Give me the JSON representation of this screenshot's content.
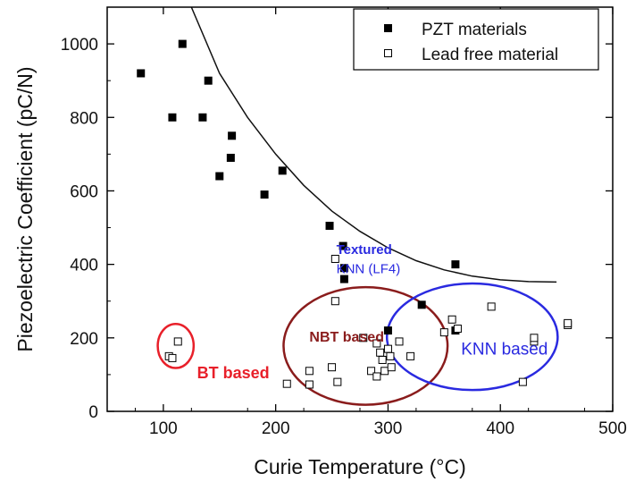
{
  "chart_data": {
    "type": "scatter",
    "xlabel": "Curie  Temperature (°C)",
    "ylabel": "Piezoelectric Coefficient (pC/N)",
    "xlim": [
      50,
      500
    ],
    "ylim": [
      0,
      1100
    ],
    "xticks": [
      100,
      200,
      300,
      400,
      500
    ],
    "yticks": [
      0,
      200,
      400,
      600,
      800,
      1000
    ],
    "legend": {
      "placement": "top-right",
      "entries": [
        "PZT materials",
        "Lead free material"
      ]
    },
    "series": [
      {
        "name": "PZT materials",
        "marker": "filled-square",
        "color": "#000000",
        "points": [
          [
            80,
            920
          ],
          [
            108,
            800
          ],
          [
            117,
            1000
          ],
          [
            135,
            800
          ],
          [
            140,
            900
          ],
          [
            150,
            640
          ],
          [
            160,
            690
          ],
          [
            161,
            750
          ],
          [
            190,
            590
          ],
          [
            206,
            655
          ],
          [
            248,
            505
          ],
          [
            260,
            450
          ],
          [
            261,
            390
          ],
          [
            261,
            360
          ],
          [
            300,
            220
          ],
          [
            330,
            290
          ],
          [
            360,
            220
          ],
          [
            360,
            400
          ]
        ]
      },
      {
        "name": "Lead free material",
        "marker": "open-square",
        "color": "#000000",
        "points": [
          [
            105,
            150
          ],
          [
            108,
            145
          ],
          [
            113,
            190
          ],
          [
            210,
            75
          ],
          [
            230,
            110
          ],
          [
            230,
            73
          ],
          [
            250,
            120
          ],
          [
            253,
            415
          ],
          [
            253,
            300
          ],
          [
            255,
            80
          ],
          [
            278,
            200
          ],
          [
            285,
            110
          ],
          [
            290,
            95
          ],
          [
            290,
            185
          ],
          [
            293,
            160
          ],
          [
            295,
            140
          ],
          [
            297,
            110
          ],
          [
            300,
            170
          ],
          [
            302,
            150
          ],
          [
            303,
            120
          ],
          [
            310,
            190
          ],
          [
            320,
            150
          ],
          [
            350,
            215
          ],
          [
            357,
            250
          ],
          [
            362,
            225
          ],
          [
            392,
            285
          ],
          [
            420,
            80
          ],
          [
            430,
            190
          ],
          [
            430,
            200
          ],
          [
            460,
            235
          ],
          [
            460,
            240
          ]
        ]
      }
    ],
    "trend_curve": [
      [
        125,
        1100
      ],
      [
        150,
        920
      ],
      [
        175,
        800
      ],
      [
        200,
        700
      ],
      [
        225,
        615
      ],
      [
        250,
        545
      ],
      [
        275,
        490
      ],
      [
        300,
        445
      ],
      [
        325,
        410
      ],
      [
        350,
        385
      ],
      [
        375,
        368
      ],
      [
        400,
        358
      ],
      [
        425,
        353
      ],
      [
        450,
        352
      ]
    ],
    "annotations": [
      {
        "text": "BT based",
        "color": "#e8202a",
        "x": 130,
        "y": 90
      },
      {
        "text": "NBT based",
        "color": "#8a1c1c",
        "x": 230,
        "y": 190
      },
      {
        "text": "KNN based",
        "color": "#2a2ae0",
        "x": 365,
        "y": 155
      },
      {
        "text": "Textured",
        "color": "#2a2ae0",
        "x": 254,
        "y": 428
      },
      {
        "text": "KNN (LF4)",
        "color": "#2a2ae0",
        "x": 254,
        "y": 376
      }
    ],
    "regions": [
      {
        "name": "BT based",
        "color": "#e8202a",
        "cx": 111,
        "cy": 178,
        "rx": 16,
        "ry": 60
      },
      {
        "name": "NBT based",
        "color": "#8a1c1c",
        "cx": 280,
        "cy": 178,
        "rx": 73,
        "ry": 160
      },
      {
        "name": "KNN based",
        "color": "#2a2ae0",
        "cx": 375,
        "cy": 203,
        "rx": 76,
        "ry": 145
      }
    ]
  }
}
